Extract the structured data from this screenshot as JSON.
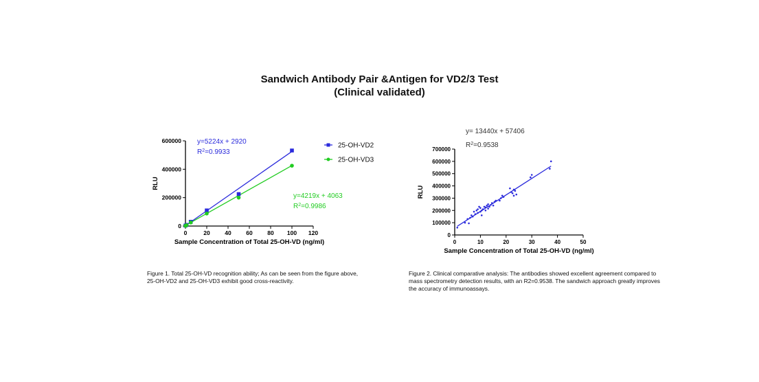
{
  "page": {
    "title_line1": "Sandwich Antibody Pair &Antigen for VD2/3 Test",
    "title_line2": "(Clinical validated)",
    "caption1": "Figure 1. Total 25-OH-VD recognition ability; As can be seen from the figure above, 25-OH-VD2 and 25-OH-VD3 exhibit good cross-reactivity.",
    "caption2": "Figure 2. Clinical comparative analysis: The antibodies showed excellent agreement compared to mass spectrometry detection results, with an R2=0.9538. The sandwich approach greatly improves the accuracy of immunoassays."
  },
  "chart_data": [
    {
      "type": "scatter",
      "xlabel": "Sample Concentration of Total 25-OH-VD (ng/ml)",
      "ylabel": "RLU",
      "xlim": [
        0,
        120
      ],
      "ylim": [
        0,
        600000
      ],
      "xticks": [
        "0",
        "20",
        "40",
        "60",
        "80",
        "100",
        "120"
      ],
      "yticks": [
        "0",
        "200000",
        "400000",
        "600000"
      ],
      "legend_position": "top-right",
      "series": [
        {
          "name": "25-OH-VD2",
          "color": "#2b2bdc",
          "marker": "square",
          "x": [
            0,
            1,
            5,
            20,
            50,
            100
          ],
          "y": [
            3000,
            8000,
            30000,
            110000,
            225000,
            532000
          ],
          "fit": {
            "slope": 5224,
            "intercept": 2920
          },
          "equation": "y=5224x + 2920",
          "r2_prefix": "R",
          "r2_value": "=0.9933"
        },
        {
          "name": "25-OH-VD3",
          "color": "#22cc22",
          "marker": "circle",
          "x": [
            0,
            1,
            5,
            20,
            50,
            100
          ],
          "y": [
            2000,
            6000,
            25000,
            88000,
            200000,
            425000
          ],
          "fit": {
            "slope": 4219,
            "intercept": 4063
          },
          "equation": "y=4219x + 4063",
          "r2_prefix": "R",
          "r2_value": "=0.9986"
        }
      ]
    },
    {
      "type": "scatter",
      "xlabel": "Sample Concentration of Total 25-OH-VD (ng/ml)",
      "ylabel": "RLU",
      "xlim": [
        0,
        50
      ],
      "ylim": [
        0,
        700000
      ],
      "xticks": [
        "0",
        "10",
        "20",
        "30",
        "40",
        "50"
      ],
      "yticks": [
        "0",
        "100000",
        "200000",
        "300000",
        "400000",
        "500000",
        "600000",
        "700000"
      ],
      "series": [
        {
          "color": "#2b2bdc",
          "marker": "dot",
          "fit": {
            "slope": 13440,
            "intercept": 57406,
            "xrange": [
              1,
              37.5
            ]
          },
          "equation": "y= 13440x + 57406",
          "r2_prefix": "R",
          "r2_value": "=0.9538",
          "points": [
            [
              1,
              60000
            ],
            [
              4,
              100000
            ],
            [
              5,
              130000
            ],
            [
              5.5,
              95000
            ],
            [
              6,
              140000
            ],
            [
              6.5,
              160000
            ],
            [
              7,
              150000
            ],
            [
              7.5,
              190000
            ],
            [
              8,
              170000
            ],
            [
              8.5,
              200000
            ],
            [
              9,
              180000
            ],
            [
              9,
              210000
            ],
            [
              9.5,
              230000
            ],
            [
              10,
              190000
            ],
            [
              10,
              220000
            ],
            [
              10.5,
              160000
            ],
            [
              10.5,
              200000
            ],
            [
              11,
              210000
            ],
            [
              11.5,
              230000
            ],
            [
              12,
              200000
            ],
            [
              12,
              225000
            ],
            [
              12.5,
              240000
            ],
            [
              13,
              250000
            ],
            [
              13,
              215000
            ],
            [
              13.5,
              230000
            ],
            [
              14,
              245000
            ],
            [
              14.5,
              260000
            ],
            [
              15,
              240000
            ],
            [
              15.5,
              270000
            ],
            [
              16,
              280000
            ],
            [
              17.5,
              280000
            ],
            [
              18,
              300000
            ],
            [
              18.5,
              320000
            ],
            [
              19,
              310000
            ],
            [
              21.5,
              380000
            ],
            [
              22,
              350000
            ],
            [
              22.5,
              340000
            ],
            [
              23,
              320000
            ],
            [
              23,
              370000
            ],
            [
              23.5,
              360000
            ],
            [
              24,
              330000
            ],
            [
              29.5,
              470000
            ],
            [
              30,
              490000
            ],
            [
              37,
              540000
            ],
            [
              37.5,
              600000
            ]
          ]
        }
      ]
    }
  ]
}
